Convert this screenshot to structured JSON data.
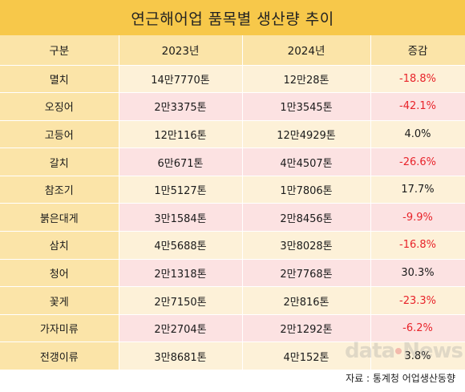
{
  "title": "연근해어업 품목별 생산량 추이",
  "headers": [
    "구분",
    "2023년",
    "2024년",
    "증감"
  ],
  "rows": [
    {
      "name": "멸치",
      "y2023": "14만7770톤",
      "y2024": "12만28톤",
      "change": "-18.8%",
      "negative": true
    },
    {
      "name": "오징어",
      "y2023": "2만3375톤",
      "y2024": "1만3545톤",
      "change": "-42.1%",
      "negative": true
    },
    {
      "name": "고등어",
      "y2023": "12만116톤",
      "y2024": "12만4929톤",
      "change": "4.0%",
      "negative": false
    },
    {
      "name": "갈치",
      "y2023": "6만671톤",
      "y2024": "4만4507톤",
      "change": "-26.6%",
      "negative": true
    },
    {
      "name": "참조기",
      "y2023": "1만5127톤",
      "y2024": "1만7806톤",
      "change": "17.7%",
      "negative": false
    },
    {
      "name": "붉은대게",
      "y2023": "3만1584톤",
      "y2024": "2만8456톤",
      "change": "-9.9%",
      "negative": true
    },
    {
      "name": "삼치",
      "y2023": "4만5688톤",
      "y2024": "3만8028톤",
      "change": "-16.8%",
      "negative": true
    },
    {
      "name": "청어",
      "y2023": "2만1318톤",
      "y2024": "2만7768톤",
      "change": "30.3%",
      "negative": false
    },
    {
      "name": "꽃게",
      "y2023": "2만7150톤",
      "y2024": "2만816톤",
      "change": "-23.3%",
      "negative": true
    },
    {
      "name": "가자미류",
      "y2023": "2만2704톤",
      "y2024": "2만1292톤",
      "change": "-6.2%",
      "negative": true
    },
    {
      "name": "전갱이류",
      "y2023": "3만8681톤",
      "y2024": "4만152톤",
      "change": "3.8%",
      "negative": false
    }
  ],
  "source": "자료 : 통계청 어업생산동향",
  "watermark": "dataNews",
  "colors": {
    "title_bg": "#f7c84a",
    "label_bg": "#fbe4a8",
    "row_light": "#fdf1d8",
    "row_pink": "#fce2e2",
    "negative": "#e8232a"
  }
}
